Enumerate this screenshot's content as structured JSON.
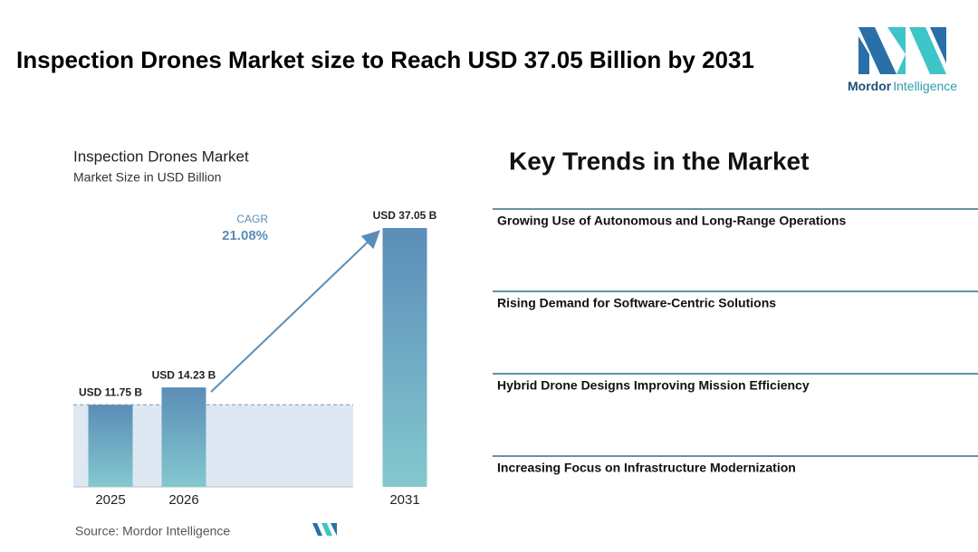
{
  "header": {
    "title": "Inspection Drones Market size to Reach USD 37.05 Billion by 2031",
    "logo_brand": "Mordor",
    "logo_suffix": "Intelligence"
  },
  "chart_data": {
    "type": "bar",
    "title": "Inspection Drones Market",
    "subtitle": "Market Size in USD Billion",
    "categories": [
      "2025",
      "2026",
      "2031"
    ],
    "values": [
      11.75,
      14.23,
      37.05
    ],
    "value_labels": [
      "USD 11.75 B",
      "USD 14.23 B",
      "USD 37.05 B"
    ],
    "colors": [
      "#5b8db8",
      "#84c8cf"
    ],
    "annotation_label": "CAGR",
    "annotation_value": "21.08%",
    "source": "Source: Mordor Intelligence"
  },
  "trends": {
    "title": "Key Trends in the Market",
    "items": [
      "Growing Use of Autonomous and Long-Range Operations",
      "Rising Demand for Software-Centric Solutions",
      "Hybrid Drone Designs Improving Mission Efficiency",
      "Increasing Focus on Infrastructure Modernization"
    ]
  }
}
